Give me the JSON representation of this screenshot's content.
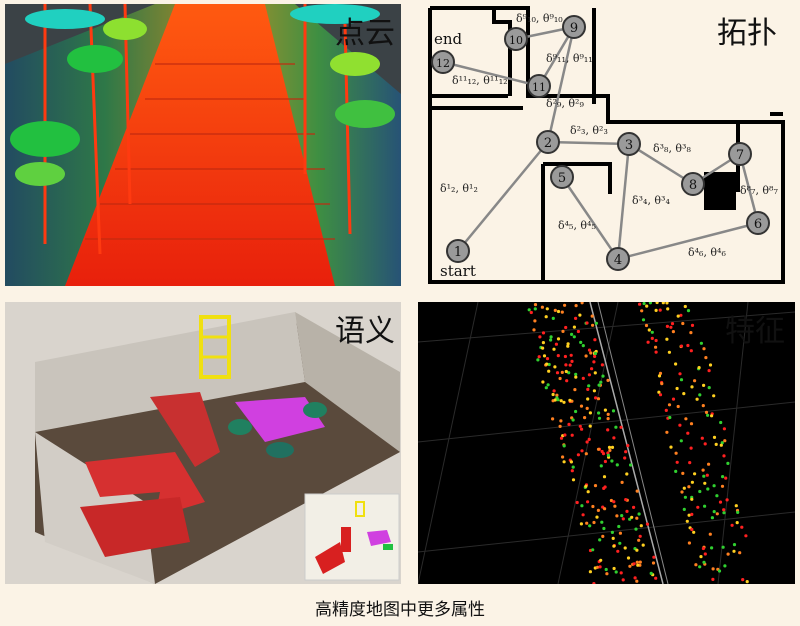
{
  "panels": {
    "point_cloud": {
      "label": "点云"
    },
    "topology": {
      "label": "拓扑",
      "end_label": "end",
      "start_label": "start",
      "nodes": [
        "1",
        "2",
        "3",
        "4",
        "5",
        "6",
        "7",
        "8",
        "9",
        "10",
        "11",
        "12"
      ],
      "edge_labels": [
        "δ¹₂, θ¹₂",
        "δ²₃, θ²₃",
        "δ³₈, θ³₈",
        "δ⁸₇, θ⁸₇",
        "δ³₄, θ³₄",
        "δ⁴₅, θ⁴₅",
        "δ⁴₆, θ⁴₆",
        "δ²₉, θ²₉",
        "δ⁹₁₁, θ⁹₁₁",
        "δ⁹₁₀, θ⁹₁₀",
        "δ¹¹₁₂, θ¹¹₁₂"
      ]
    },
    "semantic": {
      "label": "语义"
    },
    "feature": {
      "label": "特征"
    }
  },
  "caption": "高精度地图中更多属性"
}
